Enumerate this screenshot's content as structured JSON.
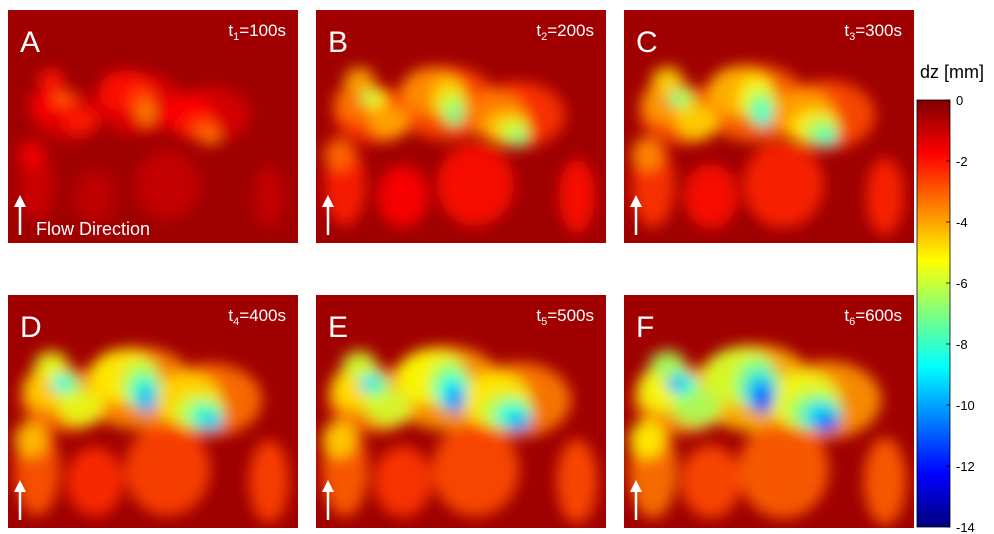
{
  "panels": [
    {
      "letter": "A",
      "time_symbol": "t",
      "time_index": "1",
      "time_value": "=100s",
      "flow_label": "Flow Direction"
    },
    {
      "letter": "B",
      "time_symbol": "t",
      "time_index": "2",
      "time_value": "=200s"
    },
    {
      "letter": "C",
      "time_symbol": "t",
      "time_index": "3",
      "time_value": "=300s"
    },
    {
      "letter": "D",
      "time_symbol": "t",
      "time_index": "4",
      "time_value": "=400s"
    },
    {
      "letter": "E",
      "time_symbol": "t",
      "time_index": "5",
      "time_value": "=500s"
    },
    {
      "letter": "F",
      "time_symbol": "t",
      "time_index": "6",
      "time_value": "=600s"
    }
  ],
  "colorbar": {
    "label": "dz [mm]",
    "lim": [
      0,
      -14
    ],
    "ticks": [
      0,
      -2,
      -4,
      -6,
      -8,
      -10,
      -12,
      -14
    ]
  }
}
